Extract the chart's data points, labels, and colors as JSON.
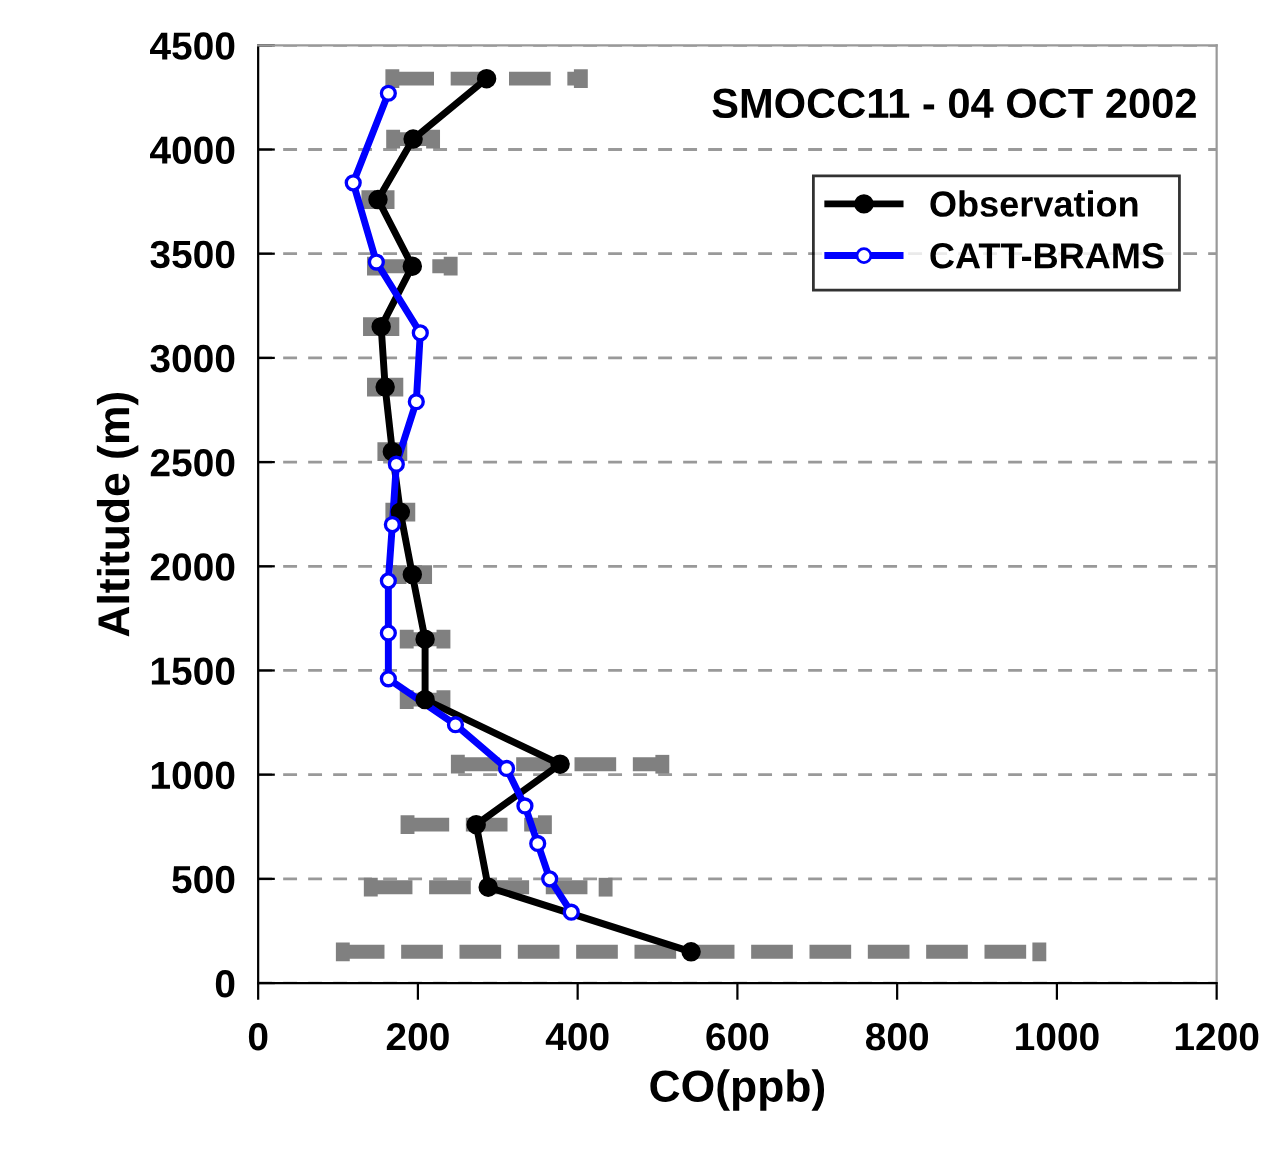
{
  "chart_data": {
    "type": "line",
    "title": "SMOCC11 - 04 OCT 2002",
    "xlabel": "CO(ppb)",
    "ylabel": "Altitude (m)",
    "xlim": [
      0,
      1200
    ],
    "xticks": [
      0,
      200,
      400,
      600,
      800,
      1000,
      1200
    ],
    "ylim": [
      0,
      4500
    ],
    "yticks": [
      0,
      500,
      1000,
      1500,
      2000,
      2500,
      3000,
      3500,
      4000,
      4500
    ],
    "grid": "y",
    "legend": "top right",
    "series": [
      {
        "name": "Observation",
        "color": "#000000",
        "marker": "circle",
        "x": [
          286,
          194,
          150,
          193,
          154,
          159,
          168,
          178,
          193,
          209,
          209,
          378,
          273,
          288,
          542
        ],
        "values": [
          4340,
          4050,
          3760,
          3440,
          3150,
          2860,
          2550,
          2260,
          1960,
          1650,
          1360,
          1050,
          760,
          460,
          150
        ],
        "xerrors": [
          118,
          25,
          12,
          48,
          14,
          14,
          10,
          10,
          16,
          23,
          23,
          128,
          86,
          147,
          436
        ]
      },
      {
        "name": "CATT-BRAMS",
        "color": "#0000ff",
        "marker": "circle",
        "x": [
          163,
          119,
          148,
          203,
          198,
          173,
          168,
          163,
          163,
          163,
          247,
          311,
          334,
          350,
          365,
          392
        ],
        "values": [
          4270,
          3840,
          3460,
          3120,
          2790,
          2490,
          2200,
          1930,
          1680,
          1460,
          1240,
          1030,
          850,
          670,
          500,
          340
        ]
      }
    ]
  }
}
